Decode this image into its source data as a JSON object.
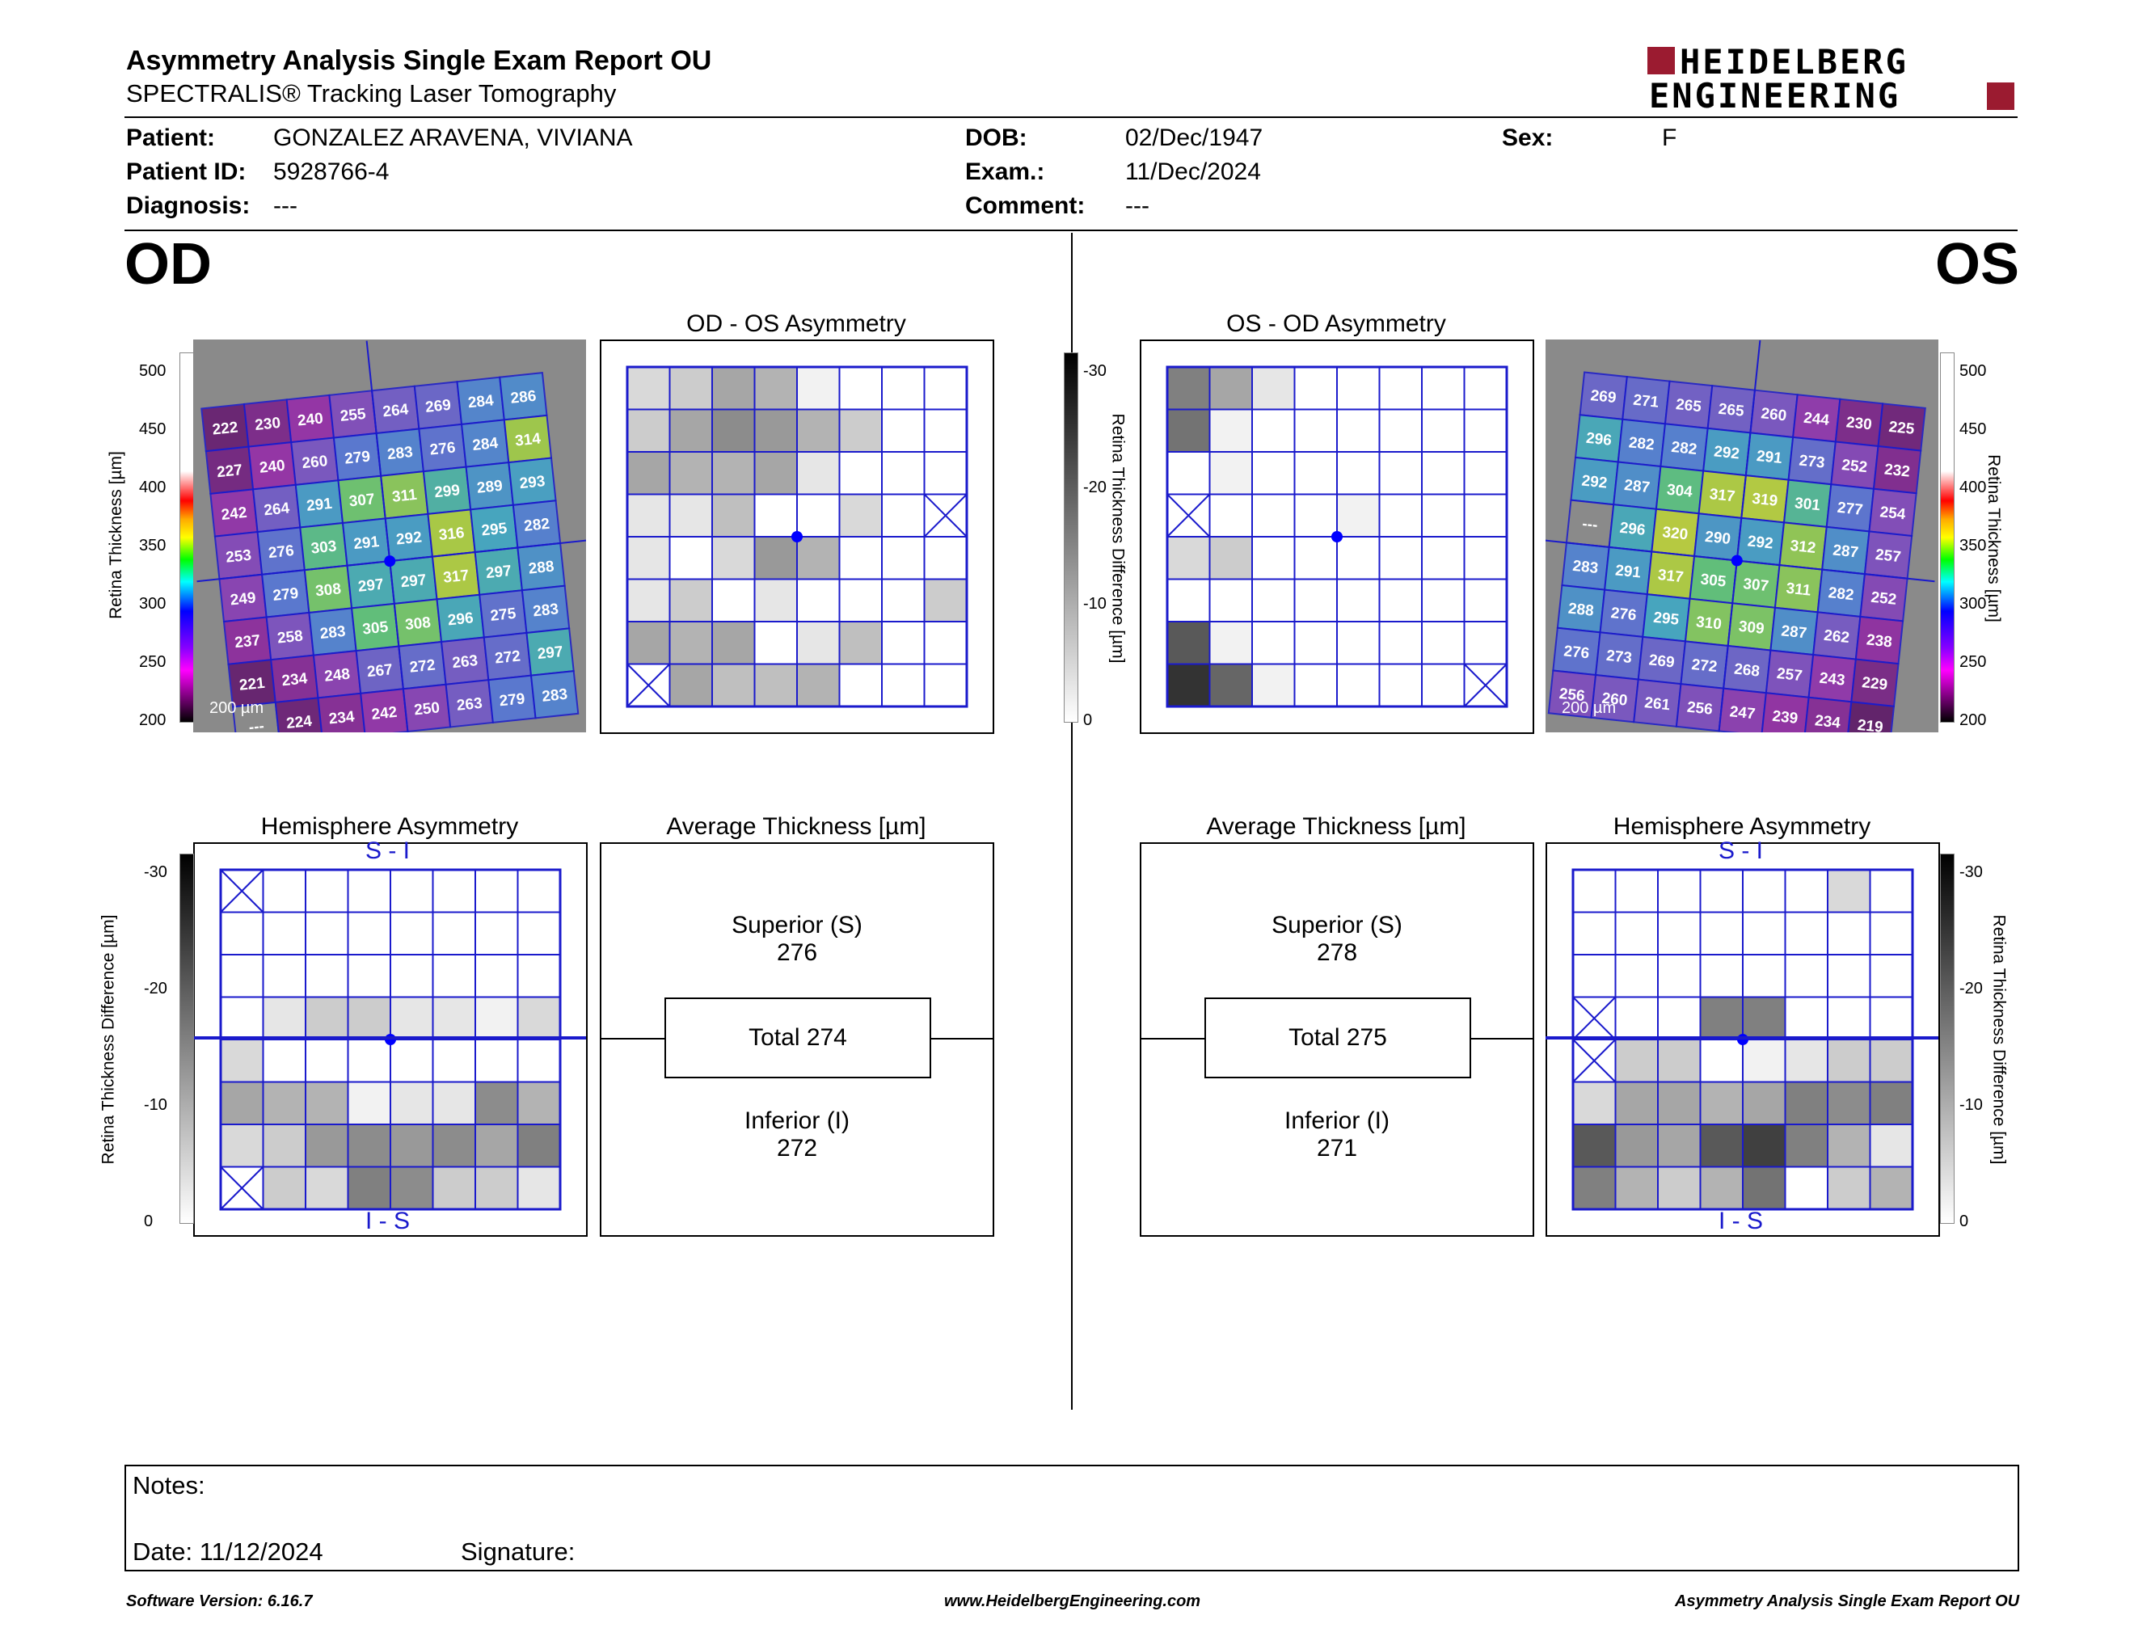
{
  "report": {
    "title": "Asymmetry Analysis Single Exam Report OU",
    "subtitle": "SPECTRALIS® Tracking Laser Tomography",
    "logo_line1": "HEIDELBERG",
    "logo_line2": "ENGINEERING",
    "brand_color": "#9b1b30"
  },
  "patient": {
    "patient_label": "Patient:",
    "patient_value": "GONZALEZ ARAVENA, VIVIANA",
    "id_label": "Patient ID:",
    "id_value": "5928766-4",
    "diag_label": "Diagnosis:",
    "diag_value": "---",
    "dob_label": "DOB:",
    "dob_value": "02/Dec/1947",
    "exam_label": "Exam.:",
    "exam_value": "11/Dec/2024",
    "comment_label": "Comment:",
    "comment_value": "---",
    "sex_label": "Sex:",
    "sex_value": "F"
  },
  "od": {
    "label": "OD",
    "asym_title": "OD - OS Asymmetry",
    "hemi_title": "Hemisphere Asymmetry",
    "avg_title": "Average Thickness [µm]",
    "sup_label": "Superior (S)",
    "sup_value": "276",
    "total_label": "Total 274",
    "inf_label": "Inferior (I)",
    "inf_value": "272",
    "scale_bar": "200 µm",
    "hemi_top": "S - I",
    "hemi_bottom": "I - S",
    "thickness_grid": [
      [
        222,
        230,
        240,
        255,
        264,
        269,
        284,
        286
      ],
      [
        227,
        240,
        260,
        279,
        283,
        276,
        284,
        314
      ],
      [
        242,
        264,
        291,
        307,
        311,
        299,
        289,
        293
      ],
      [
        253,
        276,
        303,
        291,
        292,
        316,
        295,
        282
      ],
      [
        249,
        279,
        308,
        297,
        297,
        317,
        297,
        288
      ],
      [
        237,
        258,
        283,
        305,
        308,
        296,
        275,
        283
      ],
      [
        221,
        234,
        248,
        267,
        272,
        263,
        272,
        297
      ],
      [
        null,
        224,
        234,
        242,
        250,
        263,
        279,
        283
      ]
    ],
    "asym_grid": [
      [
        0.15,
        0.2,
        0.35,
        0.3,
        0.05,
        0,
        0,
        0
      ],
      [
        0.2,
        0.35,
        0.45,
        0.4,
        0.3,
        0.2,
        0,
        0
      ],
      [
        0.35,
        0.3,
        0.3,
        0.35,
        0.1,
        0,
        0,
        0
      ],
      [
        0.1,
        0.1,
        0.25,
        0,
        0,
        0.15,
        0,
        "x"
      ],
      [
        0.1,
        0,
        0.15,
        0.4,
        0.3,
        0,
        0,
        0
      ],
      [
        0.1,
        0.2,
        0,
        0.1,
        0,
        0,
        0,
        0.2
      ],
      [
        0.35,
        0.3,
        0.35,
        0,
        0.1,
        0.25,
        0,
        0
      ],
      [
        "x",
        0.35,
        0.25,
        0.25,
        0.3,
        0,
        0,
        0
      ]
    ],
    "hemi_grid": [
      [
        "x",
        0,
        0,
        0,
        0,
        0,
        0,
        0
      ],
      [
        0,
        0,
        0,
        0,
        0,
        0,
        0,
        0
      ],
      [
        0,
        0,
        0,
        0,
        0,
        0,
        0,
        0
      ],
      [
        0,
        0.1,
        0.2,
        0.2,
        0.1,
        0.1,
        0.05,
        0.15
      ],
      [
        0.15,
        0,
        0,
        0,
        0,
        0,
        0,
        0
      ],
      [
        0.35,
        0.3,
        0.3,
        0.05,
        0.1,
        0.1,
        0.45,
        0.3
      ],
      [
        0.15,
        0.2,
        0.4,
        0.45,
        0.4,
        0.45,
        0.35,
        0.5
      ],
      [
        "x",
        0.2,
        0.15,
        0.5,
        0.45,
        0.2,
        0.2,
        0.1
      ]
    ]
  },
  "os": {
    "label": "OS",
    "asym_title": "OS - OD Asymmetry",
    "hemi_title": "Hemisphere Asymmetry",
    "avg_title": "Average Thickness [µm]",
    "sup_label": "Superior (S)",
    "sup_value": "278",
    "total_label": "Total 275",
    "inf_label": "Inferior (I)",
    "inf_value": "271",
    "scale_bar": "200 µm",
    "hemi_top": "S - I",
    "hemi_bottom": "I - S",
    "thickness_grid": [
      [
        269,
        271,
        265,
        265,
        260,
        244,
        230,
        225
      ],
      [
        296,
        282,
        282,
        292,
        291,
        273,
        252,
        232
      ],
      [
        292,
        287,
        304,
        317,
        319,
        301,
        277,
        254
      ],
      [
        null,
        296,
        320,
        290,
        292,
        312,
        287,
        257
      ],
      [
        283,
        291,
        317,
        305,
        307,
        311,
        282,
        252
      ],
      [
        288,
        276,
        295,
        310,
        309,
        287,
        262,
        238
      ],
      [
        276,
        273,
        269,
        272,
        268,
        257,
        243,
        229
      ],
      [
        256,
        260,
        261,
        256,
        247,
        239,
        234,
        219
      ]
    ],
    "asym_grid": [
      [
        0.5,
        0.35,
        0.1,
        0,
        0,
        0,
        0,
        0
      ],
      [
        0.55,
        0.05,
        0,
        0,
        0,
        0,
        0,
        0
      ],
      [
        0,
        0.05,
        0,
        0,
        0,
        0,
        0,
        0
      ],
      [
        "x",
        0,
        0,
        0,
        0.05,
        0,
        0,
        0
      ],
      [
        0.15,
        0.2,
        0,
        0,
        0,
        0,
        0,
        0
      ],
      [
        0,
        0,
        0,
        0,
        0,
        0,
        0,
        0
      ],
      [
        0.65,
        0.05,
        0,
        0,
        0,
        0,
        0,
        0
      ],
      [
        0.8,
        0.6,
        0.05,
        0,
        0,
        0,
        0,
        "x"
      ]
    ],
    "hemi_grid": [
      [
        0,
        0,
        0,
        0,
        0,
        0,
        0.15,
        0
      ],
      [
        0,
        0,
        0,
        0,
        0,
        0,
        0,
        0
      ],
      [
        0,
        0,
        0,
        0,
        0,
        0,
        0,
        0
      ],
      [
        "x",
        0,
        0,
        0.5,
        0.5,
        0,
        0,
        0
      ],
      [
        "x",
        0.2,
        0.2,
        0,
        0.05,
        0.1,
        0.2,
        0.2
      ],
      [
        0.15,
        0.35,
        0.35,
        0.3,
        0.35,
        0.5,
        0.45,
        0.5
      ],
      [
        0.65,
        0.4,
        0.35,
        0.65,
        0.75,
        0.5,
        0.3,
        0.1
      ],
      [
        0.5,
        0.3,
        0.2,
        0.3,
        0.55,
        0,
        0.2,
        0.3
      ]
    ]
  },
  "scales": {
    "thickness_label": "Retina Thickness [µm]",
    "thickness_ticks": [
      "500",
      "450",
      "400",
      "350",
      "300",
      "250",
      "200"
    ],
    "diff_label": "Retina Thickness Difference [µm]",
    "diff_ticks": [
      "-30",
      "-20",
      "-10",
      "0"
    ]
  },
  "notes": {
    "notes_label": "Notes:",
    "date_label": "Date: 11/12/2024",
    "signature_label": "Signature:"
  },
  "footer": {
    "version": "Software Version: 6.16.7",
    "url": "www.HeidelbergEngineering.com",
    "report_name": "Asymmetry Analysis Single Exam Report OU"
  },
  "colors": {
    "grid_blue": "#1a1acc",
    "fovea_dot": "#0000ff"
  }
}
